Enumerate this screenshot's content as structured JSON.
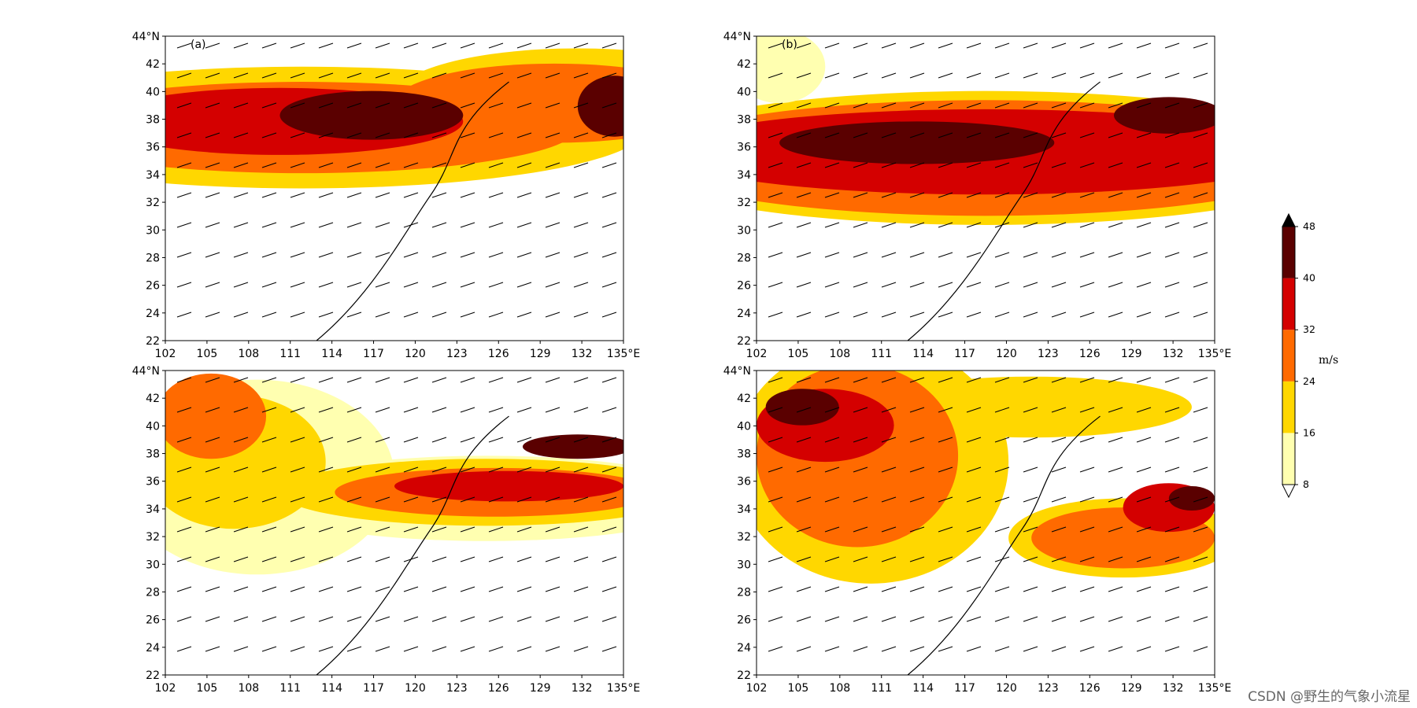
{
  "figure": {
    "x_ticks": [
      "102",
      "105",
      "108",
      "111",
      "114",
      "117",
      "120",
      "123",
      "126",
      "129",
      "132",
      "135°E"
    ],
    "y_ticks": [
      "22",
      "24",
      "26",
      "28",
      "30",
      "32",
      "34",
      "36",
      "38",
      "40",
      "42",
      "44°N"
    ],
    "lon_range": [
      102,
      135
    ],
    "lat_range": [
      22,
      44
    ]
  },
  "panels": [
    {
      "id": "a",
      "label": "(a)"
    },
    {
      "id": "b",
      "label": "(b)"
    },
    {
      "id": "c",
      "label": ""
    },
    {
      "id": "d",
      "label": ""
    }
  ],
  "colorbar": {
    "unit": "m/s",
    "ticks": [
      "8",
      "16",
      "24",
      "32",
      "40",
      "48"
    ],
    "levels": [
      8,
      16,
      24,
      32,
      40,
      48
    ],
    "colors": [
      "#ffffb0",
      "#ffd700",
      "#ff6a00",
      "#d40000",
      "#5a0000",
      "#000000"
    ]
  },
  "watermark": "CSDN @野生的气象小流星"
}
